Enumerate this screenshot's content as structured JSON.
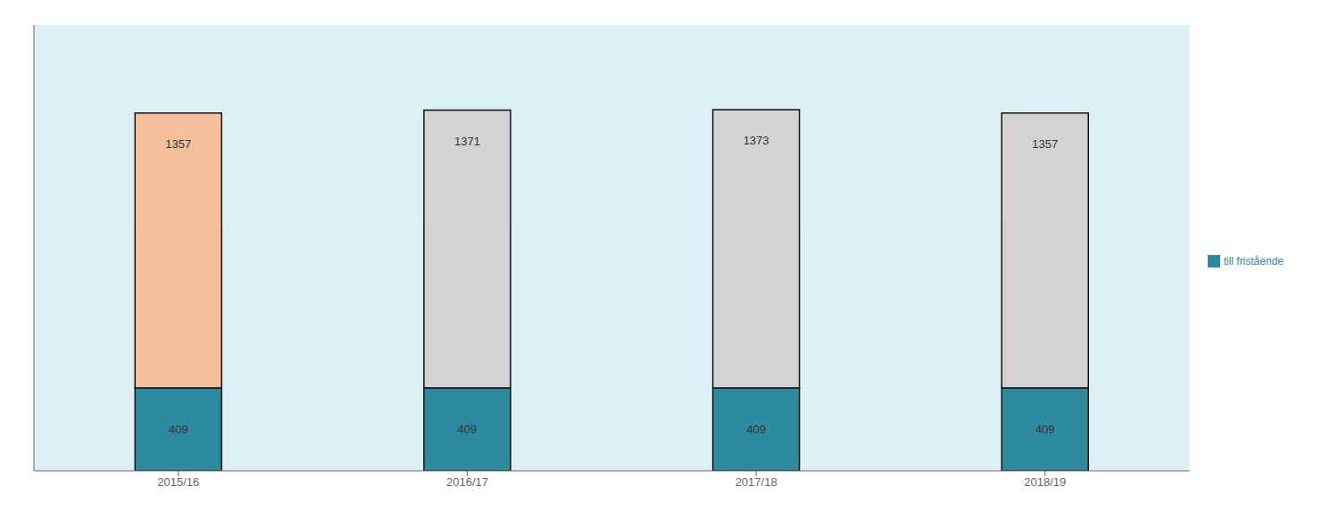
{
  "chart_data": {
    "type": "bar",
    "stacked": true,
    "data_labels": true,
    "tick_labels": "x",
    "legend": "right",
    "categories": [
      "2015/16",
      "2016/17",
      "2017/18",
      "2018/19"
    ],
    "ylim": [
      0,
      2200
    ],
    "series": [
      {
        "name": "till fristående",
        "color": "#2e8a9e",
        "values": [
          409,
          409,
          409,
          409
        ]
      },
      {
        "colors": [
          "#f5c09a",
          "#d3d3d3",
          "#d3d3d3",
          "#d3d3d3"
        ],
        "values": [
          1357,
          1371,
          1373,
          1357
        ]
      }
    ]
  }
}
